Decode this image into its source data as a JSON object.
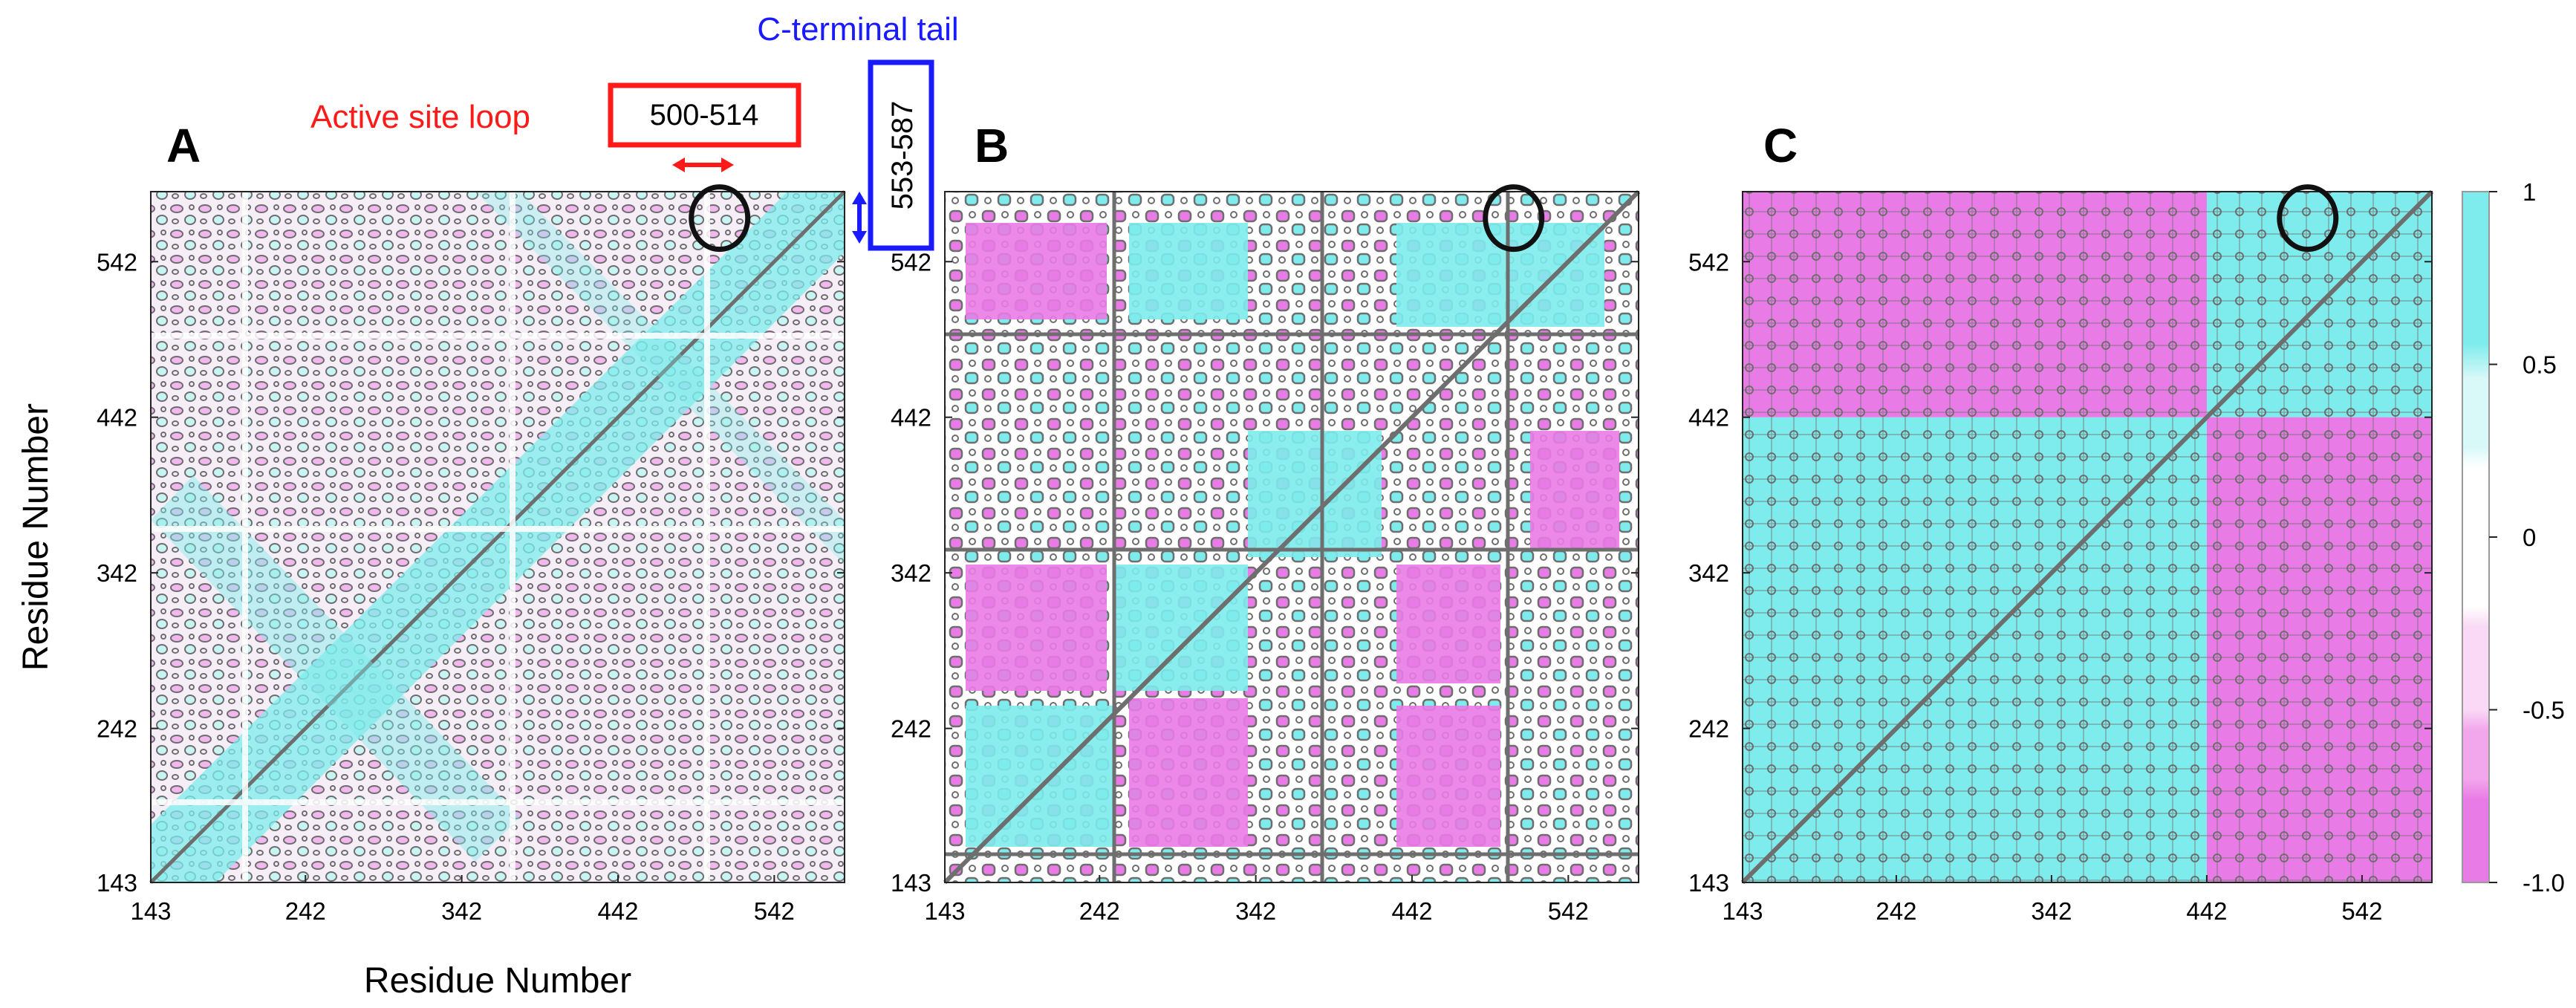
{
  "chart_data": [
    {
      "type": "heatmap",
      "panel": "A",
      "x_ticks": [
        "143",
        "242",
        "342",
        "442",
        "542"
      ],
      "y_ticks": [
        "143",
        "242",
        "342",
        "442",
        "542"
      ],
      "xlabel": "Residue Number",
      "ylabel": "Residue Number",
      "xlim": [
        143,
        587
      ],
      "ylim": [
        143,
        587
      ],
      "highlight_circle": {
        "x": 507,
        "y": 570
      },
      "note": "Symmetric dynamic cross-correlation map; mostly weak mixed correlations with a positive diagonal band"
    },
    {
      "type": "heatmap",
      "panel": "B",
      "x_ticks": [
        "143",
        "242",
        "342",
        "442",
        "542"
      ],
      "y_ticks": [
        "143",
        "242",
        "342",
        "442",
        "542"
      ],
      "xlim": [
        143,
        587
      ],
      "ylim": [
        143,
        587
      ],
      "highlight_circle": {
        "x": 507,
        "y": 570
      },
      "note": "Checkerboard of positive and negative correlation blocks"
    },
    {
      "type": "heatmap",
      "panel": "C",
      "x_ticks": [
        "143",
        "242",
        "342",
        "442",
        "542"
      ],
      "y_ticks": [
        "143",
        "242",
        "342",
        "442",
        "542"
      ],
      "xlim": [
        143,
        587
      ],
      "ylim": [
        143,
        587
      ],
      "highlight_circle": {
        "x": 507,
        "y": 570
      },
      "blocks": [
        {
          "x": [
            143,
            442
          ],
          "y": [
            143,
            442
          ],
          "sign": "positive"
        },
        {
          "x": [
            442,
            587
          ],
          "y": [
            442,
            587
          ],
          "sign": "positive"
        },
        {
          "x": [
            143,
            442
          ],
          "y": [
            442,
            587
          ],
          "sign": "negative"
        },
        {
          "x": [
            442,
            587
          ],
          "y": [
            143,
            442
          ],
          "sign": "negative"
        }
      ],
      "note": "Strong block structure: two positively correlated domains split at residue 442"
    }
  ],
  "colorbar": {
    "ticks": [
      "1",
      "0.5",
      "0",
      "-0.5",
      "-1.0"
    ],
    "tick_values": [
      1,
      0.5,
      0,
      -0.5,
      -1.0
    ],
    "range": [
      -1.0,
      1.0
    ],
    "colors": {
      "strong_positive": "#7eecec",
      "weak_positive": "#d9f8f8",
      "neutral": "#ffffff",
      "weak_negative": "#f9d9f5",
      "mid_negative": "#f2a6ec",
      "strong_negative": "#e97be6"
    }
  },
  "annotations": {
    "active_site_label": "Active site loop",
    "active_site_range": "500-514",
    "c_terminal_label": "C-terminal tail",
    "c_terminal_range": "553-587"
  },
  "colors": {
    "positive": "#7eecec",
    "negative": "#e97be6",
    "contour": "#707070",
    "active_site": "#ff1a1a",
    "c_terminal": "#1a1aff"
  }
}
